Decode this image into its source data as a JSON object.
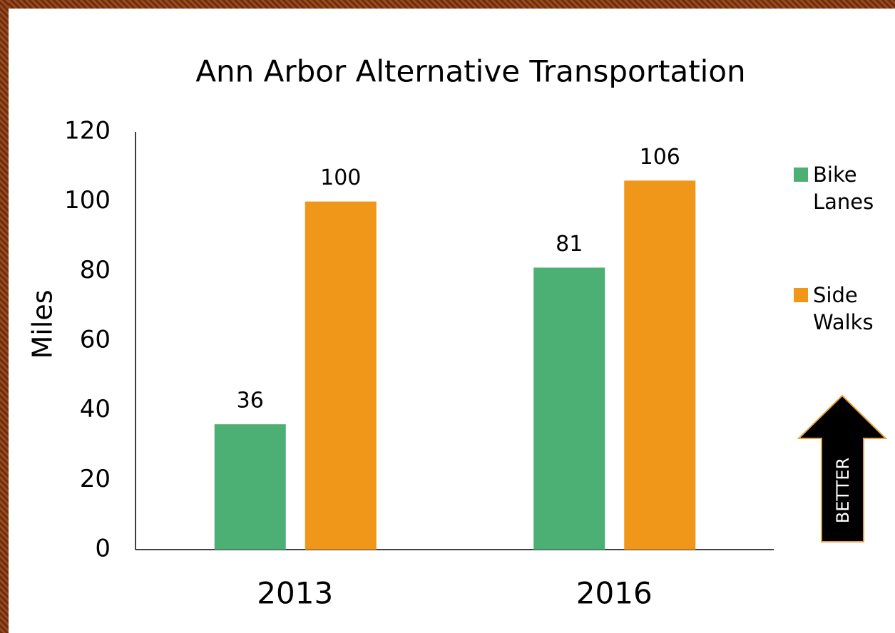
{
  "chart_data": {
    "type": "bar",
    "title": "Ann Arbor Alternative Transportation",
    "y_label": "Miles",
    "categories": [
      "2013",
      "2016"
    ],
    "series": [
      {
        "name": "Bike Lanes",
        "color": "#4caf74",
        "values": [
          36,
          81
        ]
      },
      {
        "name": "Side Walks",
        "color": "#f09619",
        "values": [
          100,
          106
        ]
      }
    ],
    "ylim": [
      0,
      120
    ],
    "yticks": [
      0,
      20,
      40,
      60,
      80,
      100,
      120
    ],
    "legend": "right",
    "annotation": "BETTER"
  }
}
